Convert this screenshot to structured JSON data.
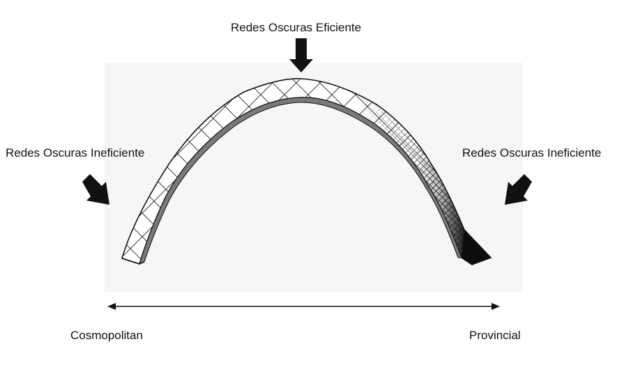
{
  "labels": {
    "top": "Redes Oscuras Eficiente",
    "left": "Redes Oscuras Ineficiente",
    "right": "Redes Oscuras Ineficiente"
  },
  "axis": {
    "left_label": "Cosmopolitan",
    "right_label": "Provincial"
  },
  "colors": {
    "ink": "#111111",
    "band_fill": "#ffffff",
    "dark_end": "#111111"
  }
}
